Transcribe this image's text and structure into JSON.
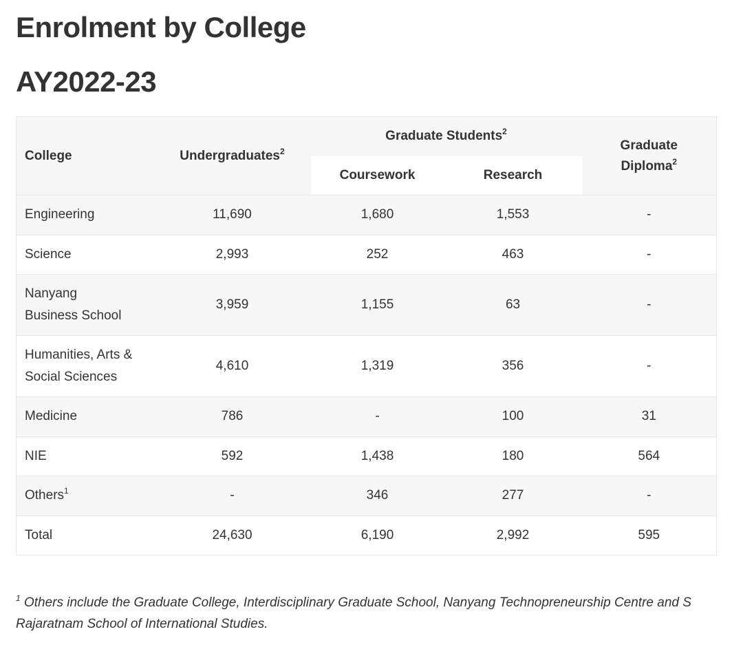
{
  "title": "Enrolment by College",
  "subtitle": "AY2022-23",
  "table": {
    "headers": {
      "college": "College",
      "undergrad": "Undergraduates",
      "undergrad_sup": "2",
      "graduate": "Graduate Students",
      "graduate_sup": "2",
      "coursework": "Coursework",
      "research": "Research",
      "diploma": "Graduate Diploma",
      "diploma_sup": "2"
    },
    "rows": [
      {
        "college": "Engineering",
        "undergrad": "11,690",
        "coursework": "1,680",
        "research": "1,553",
        "diploma": "-"
      },
      {
        "college": "Science",
        "undergrad": "2,993",
        "coursework": "252",
        "research": "463",
        "diploma": "-"
      },
      {
        "college": "Nanyang Business School",
        "undergrad": "3,959",
        "coursework": "1,155",
        "research": "63",
        "diploma": "-"
      },
      {
        "college": "Humanities, Arts & Social Sciences",
        "undergrad": "4,610",
        "coursework": "1,319",
        "research": "356",
        "diploma": "-"
      },
      {
        "college": "Medicine",
        "undergrad": "786",
        "coursework": "-",
        "research": "100",
        "diploma": "31"
      },
      {
        "college": "NIE",
        "undergrad": "592",
        "coursework": "1,438",
        "research": "180",
        "diploma": "564"
      },
      {
        "college": "Others",
        "college_sup": "1",
        "undergrad": "-",
        "coursework": "346",
        "research": "277",
        "diploma": "-"
      },
      {
        "college": "Total",
        "undergrad": "24,630",
        "coursework": "6,190",
        "research": "2,992",
        "diploma": "595"
      }
    ]
  },
  "footnote": {
    "marker": "1",
    "text": "Others include the Graduate College, Interdisciplinary Graduate School, Nanyang Technopreneurship Centre and S Rajaratnam School of International Studies."
  }
}
